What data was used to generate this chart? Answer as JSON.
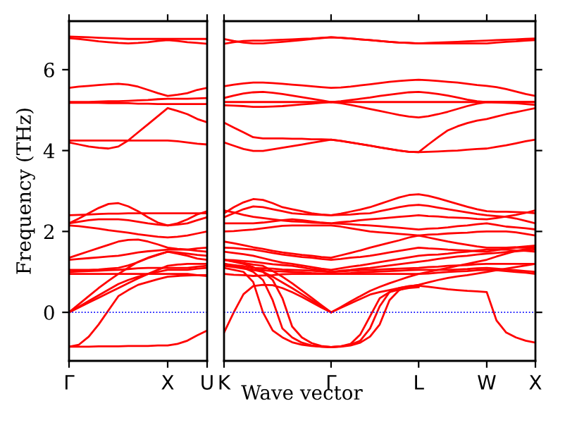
{
  "chart_data": [
    {
      "type": "line",
      "ylabel": "Frequency (THz)",
      "categories": [
        "Γ",
        null,
        null,
        null,
        null,
        null,
        null,
        null,
        null,
        null,
        "X",
        null,
        null,
        null,
        "U"
      ],
      "ylim": [
        -1.2,
        7.2
      ],
      "yticks": [
        0,
        2,
        4,
        6
      ],
      "ref_lines": [
        {
          "axis": "y",
          "value": 0,
          "color": "#0000ff",
          "line_style": "dotted"
        }
      ],
      "line_style": "solid",
      "marker": "none",
      "grid": false,
      "legend": false,
      "series": [
        {
          "color": "#ff0000",
          "values": [
            6.82,
            6.81,
            6.8,
            6.79,
            6.78,
            6.77,
            6.76,
            6.76,
            6.76,
            6.76,
            6.76,
            6.76,
            6.76,
            6.76,
            6.76
          ]
        },
        {
          "color": "#ff0000",
          "values": [
            6.78,
            6.76,
            6.73,
            6.7,
            6.68,
            6.66,
            6.65,
            6.66,
            6.68,
            6.71,
            6.73,
            6.71,
            6.68,
            6.66,
            6.64
          ]
        },
        {
          "color": "#ff0000",
          "values": [
            5.55,
            5.58,
            5.6,
            5.62,
            5.64,
            5.65,
            5.63,
            5.58,
            5.5,
            5.42,
            5.35,
            5.38,
            5.42,
            5.5,
            5.55
          ]
        },
        {
          "color": "#ff0000",
          "values": [
            5.2,
            5.2,
            5.2,
            5.21,
            5.22,
            5.22,
            5.23,
            5.24,
            5.25,
            5.27,
            5.28,
            5.28,
            5.28,
            5.29,
            5.3
          ]
        },
        {
          "color": "#ff0000",
          "values": [
            5.18,
            5.18,
            5.18,
            5.18,
            5.17,
            5.17,
            5.17,
            5.16,
            5.16,
            5.15,
            5.15,
            5.15,
            5.15,
            5.15,
            5.15
          ]
        },
        {
          "color": "#ff0000",
          "values": [
            4.25,
            4.25,
            4.25,
            4.25,
            4.25,
            4.25,
            4.25,
            4.25,
            4.25,
            4.25,
            4.25,
            4.23,
            4.2,
            4.17,
            4.15
          ]
        },
        {
          "color": "#ff0000",
          "values": [
            4.2,
            4.15,
            4.1,
            4.07,
            4.05,
            4.1,
            4.25,
            4.45,
            4.65,
            4.85,
            5.05,
            4.98,
            4.9,
            4.78,
            4.7
          ]
        },
        {
          "color": "#ff0000",
          "values": [
            2.4,
            2.41,
            2.42,
            2.43,
            2.44,
            2.44,
            2.45,
            2.45,
            2.45,
            2.45,
            2.45,
            2.45,
            2.45,
            2.45,
            2.45
          ]
        },
        {
          "color": "#ff0000",
          "values": [
            2.2,
            2.32,
            2.45,
            2.58,
            2.68,
            2.7,
            2.62,
            2.5,
            2.35,
            2.22,
            2.15,
            2.2,
            2.3,
            2.42,
            2.5
          ]
        },
        {
          "color": "#ff0000",
          "values": [
            2.2,
            2.24,
            2.28,
            2.3,
            2.3,
            2.3,
            2.28,
            2.24,
            2.2,
            2.17,
            2.15,
            2.17,
            2.2,
            2.28,
            2.35
          ]
        },
        {
          "color": "#ff0000",
          "values": [
            2.15,
            2.13,
            2.1,
            2.07,
            2.03,
            2.0,
            1.97,
            1.93,
            1.9,
            1.87,
            1.85,
            1.87,
            1.9,
            1.95,
            2.0
          ]
        },
        {
          "color": "#ff0000",
          "values": [
            1.35,
            1.43,
            1.51,
            1.59,
            1.67,
            1.75,
            1.79,
            1.8,
            1.75,
            1.68,
            1.6,
            1.57,
            1.55,
            1.52,
            1.5
          ]
        },
        {
          "color": "#ff0000",
          "values": [
            1.3,
            1.32,
            1.34,
            1.36,
            1.38,
            1.4,
            1.44,
            1.48,
            1.51,
            1.53,
            1.55,
            1.55,
            1.55,
            1.58,
            1.6
          ]
        },
        {
          "color": "#ff0000",
          "values": [
            1.05,
            1.05,
            1.05,
            1.06,
            1.08,
            1.1,
            1.16,
            1.24,
            1.34,
            1.42,
            1.5,
            1.45,
            1.4,
            1.33,
            1.3
          ]
        },
        {
          "color": "#ff0000",
          "values": [
            1.0,
            1.01,
            1.02,
            1.03,
            1.04,
            1.05,
            1.07,
            1.09,
            1.1,
            1.1,
            1.1,
            1.1,
            1.1,
            1.13,
            1.15
          ]
        },
        {
          "color": "#ff0000",
          "values": [
            0.95,
            0.95,
            0.95,
            0.95,
            0.95,
            0.95,
            0.95,
            0.95,
            0.95,
            0.95,
            0.95,
            0.95,
            0.95,
            0.92,
            0.9
          ]
        },
        {
          "color": "#ff0000",
          "values": [
            0,
            0.2,
            0.4,
            0.6,
            0.78,
            0.95,
            1.1,
            1.25,
            1.35,
            1.43,
            1.5,
            1.48,
            1.45,
            1.42,
            1.4
          ]
        },
        {
          "color": "#ff0000",
          "values": [
            0,
            0.12,
            0.24,
            0.36,
            0.48,
            0.6,
            0.72,
            0.84,
            0.95,
            1.05,
            1.15,
            1.18,
            1.2,
            1.2,
            1.2
          ]
        },
        {
          "color": "#ff0000",
          "values": [
            0,
            0.14,
            0.28,
            0.42,
            0.56,
            0.7,
            0.8,
            0.88,
            0.95,
            1.0,
            1.05,
            1.05,
            1.05,
            1.08,
            1.1
          ]
        },
        {
          "color": "#ff0000",
          "values": [
            -0.85,
            -0.8,
            -0.6,
            -0.3,
            0.05,
            0.4,
            0.55,
            0.68,
            0.75,
            0.82,
            0.88,
            0.9,
            0.91,
            0.92,
            0.92
          ]
        },
        {
          "color": "#ff0000",
          "values": [
            -0.85,
            -0.85,
            -0.85,
            -0.84,
            -0.84,
            -0.84,
            -0.83,
            -0.83,
            -0.83,
            -0.82,
            -0.82,
            -0.78,
            -0.7,
            -0.57,
            -0.45
          ]
        }
      ]
    },
    {
      "type": "line",
      "xlabel": "Wave vector",
      "categories": [
        "K",
        null,
        null,
        null,
        null,
        null,
        null,
        null,
        null,
        null,
        null,
        "Γ",
        null,
        null,
        null,
        null,
        null,
        null,
        null,
        null,
        "L",
        null,
        null,
        null,
        null,
        null,
        null,
        "W",
        null,
        null,
        null,
        null,
        "X"
      ],
      "ylim": [
        -1.2,
        7.2
      ],
      "yticks": [
        0,
        2,
        4,
        6
      ],
      "tick_labels": "x",
      "ref_lines": [
        {
          "axis": "y",
          "value": 0,
          "color": "#0000ff",
          "line_style": "dotted"
        }
      ],
      "line_style": "solid",
      "marker": "none",
      "grid": false,
      "legend": false,
      "series": [
        {
          "color": "#ff0000",
          "values": [
            6.76,
            6.71,
            6.67,
            6.65,
            6.65,
            6.67,
            6.69,
            6.71,
            6.73,
            6.76,
            6.78,
            6.8,
            6.79,
            6.77,
            6.75,
            6.73,
            6.71,
            6.69,
            6.67,
            6.66,
            6.65,
            6.66,
            6.67,
            6.68,
            6.69,
            6.7,
            6.71,
            6.72,
            6.73,
            6.74,
            6.75,
            6.76,
            6.77
          ]
        },
        {
          "color": "#ff0000",
          "values": [
            6.64,
            6.68,
            6.71,
            6.72,
            6.72,
            6.73,
            6.74,
            6.75,
            6.76,
            6.77,
            6.79,
            6.8,
            6.79,
            6.77,
            6.75,
            6.73,
            6.71,
            6.69,
            6.67,
            6.66,
            6.65,
            6.65,
            6.65,
            6.65,
            6.65,
            6.65,
            6.65,
            6.65,
            6.67,
            6.69,
            6.7,
            6.72,
            6.73
          ]
        },
        {
          "color": "#ff0000",
          "values": [
            5.59,
            5.63,
            5.66,
            5.68,
            5.68,
            5.67,
            5.65,
            5.63,
            5.61,
            5.59,
            5.57,
            5.55,
            5.56,
            5.58,
            5.61,
            5.64,
            5.67,
            5.7,
            5.72,
            5.74,
            5.75,
            5.74,
            5.72,
            5.7,
            5.68,
            5.65,
            5.62,
            5.6,
            5.57,
            5.52,
            5.46,
            5.4,
            5.35
          ]
        },
        {
          "color": "#ff0000",
          "values": [
            5.3,
            5.36,
            5.41,
            5.44,
            5.45,
            5.43,
            5.4,
            5.36,
            5.32,
            5.28,
            5.24,
            5.2,
            5.22,
            5.25,
            5.28,
            5.31,
            5.35,
            5.38,
            5.41,
            5.44,
            5.45,
            5.43,
            5.4,
            5.36,
            5.31,
            5.26,
            5.22,
            5.2,
            5.2,
            5.2,
            5.2,
            5.2,
            5.2
          ]
        },
        {
          "color": "#ff0000",
          "values": [
            5.2,
            5.2,
            5.2,
            5.2,
            5.2,
            5.2,
            5.2,
            5.2,
            5.2,
            5.2,
            5.2,
            5.2,
            5.2,
            5.2,
            5.2,
            5.2,
            5.2,
            5.2,
            5.2,
            5.2,
            5.2,
            5.2,
            5.2,
            5.2,
            5.2,
            5.2,
            5.2,
            5.2,
            5.2,
            5.2,
            5.2,
            5.2,
            5.2
          ]
        },
        {
          "color": "#ff0000",
          "values": [
            5.12,
            5.11,
            5.1,
            5.08,
            5.08,
            5.09,
            5.1,
            5.12,
            5.14,
            5.16,
            5.18,
            5.2,
            5.17,
            5.13,
            5.08,
            5.03,
            4.98,
            4.93,
            4.88,
            4.84,
            4.82,
            4.85,
            4.9,
            4.96,
            5.03,
            5.1,
            5.16,
            5.2,
            5.19,
            5.18,
            5.17,
            5.15,
            5.13
          ]
        },
        {
          "color": "#ff0000",
          "values": [
            4.69,
            4.57,
            4.45,
            4.33,
            4.3,
            4.3,
            4.3,
            4.29,
            4.29,
            4.28,
            4.28,
            4.27,
            4.24,
            4.2,
            4.16,
            4.12,
            4.08,
            4.04,
            4.0,
            3.97,
            3.96,
            4.15,
            4.33,
            4.5,
            4.6,
            4.68,
            4.74,
            4.78,
            4.84,
            4.9,
            4.95,
            5.0,
            5.05
          ]
        },
        {
          "color": "#ff0000",
          "values": [
            4.2,
            4.12,
            4.04,
            3.99,
            3.99,
            4.03,
            4.07,
            4.11,
            4.15,
            4.19,
            4.23,
            4.27,
            4.24,
            4.2,
            4.16,
            4.12,
            4.08,
            4.04,
            4.0,
            3.97,
            3.96,
            3.97,
            3.98,
            3.99,
            4.0,
            4.02,
            4.04,
            4.05,
            4.09,
            4.13,
            4.18,
            4.23,
            4.27
          ]
        },
        {
          "color": "#ff0000",
          "values": [
            2.45,
            2.6,
            2.72,
            2.8,
            2.78,
            2.7,
            2.6,
            2.55,
            2.5,
            2.45,
            2.42,
            2.4,
            2.44,
            2.49,
            2.54,
            2.6,
            2.68,
            2.76,
            2.84,
            2.9,
            2.92,
            2.88,
            2.82,
            2.75,
            2.68,
            2.61,
            2.55,
            2.5,
            2.49,
            2.49,
            2.48,
            2.47,
            2.45
          ]
        },
        {
          "color": "#ff0000",
          "values": [
            2.35,
            2.45,
            2.55,
            2.62,
            2.6,
            2.55,
            2.5,
            2.45,
            2.43,
            2.42,
            2.41,
            2.4,
            2.41,
            2.42,
            2.44,
            2.45,
            2.5,
            2.55,
            2.6,
            2.64,
            2.66,
            2.63,
            2.59,
            2.55,
            2.51,
            2.47,
            2.43,
            2.4,
            2.38,
            2.36,
            2.32,
            2.26,
            2.2
          ]
        },
        {
          "color": "#ff0000",
          "values": [
            2.52,
            2.47,
            2.41,
            2.36,
            2.33,
            2.3,
            2.27,
            2.25,
            2.24,
            2.22,
            2.21,
            2.2,
            2.23,
            2.25,
            2.28,
            2.3,
            2.32,
            2.34,
            2.36,
            2.38,
            2.4,
            2.38,
            2.37,
            2.35,
            2.34,
            2.33,
            2.31,
            2.3,
            2.33,
            2.37,
            2.41,
            2.46,
            2.52
          ]
        },
        {
          "color": "#ff0000",
          "values": [
            2.2,
            2.2,
            2.2,
            2.2,
            2.22,
            2.25,
            2.28,
            2.3,
            2.28,
            2.25,
            2.22,
            2.2,
            2.19,
            2.18,
            2.16,
            2.15,
            2.13,
            2.11,
            2.09,
            2.07,
            2.05,
            2.07,
            2.08,
            2.1,
            2.13,
            2.15,
            2.18,
            2.2,
            2.16,
            2.12,
            2.1,
            2.08,
            2.05
          ]
        },
        {
          "color": "#ff0000",
          "values": [
            2.0,
            2.01,
            2.03,
            2.05,
            2.08,
            2.11,
            2.14,
            2.15,
            2.15,
            2.15,
            2.15,
            2.15,
            2.12,
            2.08,
            2.04,
            2.0,
            1.98,
            1.96,
            1.94,
            1.92,
            1.9,
            1.92,
            1.93,
            1.95,
            1.96,
            1.97,
            1.99,
            2.0,
            2.0,
            2.0,
            1.98,
            1.94,
            1.9
          ]
        },
        {
          "color": "#ff0000",
          "values": [
            1.75,
            1.71,
            1.66,
            1.61,
            1.57,
            1.52,
            1.48,
            1.45,
            1.42,
            1.4,
            1.37,
            1.35,
            1.41,
            1.47,
            1.53,
            1.6,
            1.66,
            1.72,
            1.78,
            1.85,
            1.9,
            1.85,
            1.8,
            1.75,
            1.71,
            1.67,
            1.63,
            1.6,
            1.6,
            1.6,
            1.61,
            1.63,
            1.65
          ]
        },
        {
          "color": "#ff0000",
          "values": [
            1.6,
            1.59,
            1.57,
            1.55,
            1.51,
            1.47,
            1.43,
            1.4,
            1.37,
            1.35,
            1.32,
            1.3,
            1.32,
            1.35,
            1.37,
            1.4,
            1.44,
            1.48,
            1.52,
            1.56,
            1.6,
            1.58,
            1.57,
            1.55,
            1.54,
            1.53,
            1.51,
            1.5,
            1.54,
            1.58,
            1.6,
            1.6,
            1.6
          ]
        },
        {
          "color": "#ff0000",
          "values": [
            1.5,
            1.47,
            1.44,
            1.4,
            1.34,
            1.28,
            1.23,
            1.2,
            1.16,
            1.12,
            1.08,
            1.05,
            1.09,
            1.13,
            1.16,
            1.2,
            1.24,
            1.28,
            1.32,
            1.36,
            1.4,
            1.42,
            1.43,
            1.45,
            1.48,
            1.5,
            1.53,
            1.55,
            1.55,
            1.55,
            1.53,
            1.52,
            1.5
          ]
        },
        {
          "color": "#ff0000",
          "values": [
            1.3,
            1.29,
            1.27,
            1.25,
            1.22,
            1.19,
            1.17,
            1.15,
            1.11,
            1.07,
            1.04,
            1.0,
            1.03,
            1.05,
            1.08,
            1.1,
            1.13,
            1.16,
            1.19,
            1.22,
            1.25,
            1.28,
            1.32,
            1.35,
            1.38,
            1.4,
            1.43,
            1.45,
            1.47,
            1.49,
            1.51,
            1.53,
            1.55
          ]
        },
        {
          "color": "#ff0000",
          "values": [
            1.2,
            1.17,
            1.14,
            1.1,
            1.09,
            1.08,
            1.06,
            1.05,
            1.04,
            1.03,
            1.01,
            1.0,
            1.01,
            1.03,
            1.04,
            1.05,
            1.06,
            1.07,
            1.08,
            1.09,
            1.1,
            1.12,
            1.13,
            1.15,
            1.16,
            1.17,
            1.19,
            1.2,
            1.2,
            1.2,
            1.2,
            1.2,
            1.2
          ]
        },
        {
          "color": "#ff0000",
          "values": [
            1.15,
            1.12,
            1.08,
            1.05,
            1.04,
            1.02,
            1.01,
            1.0,
            0.99,
            0.97,
            0.96,
            0.95,
            0.96,
            0.97,
            0.99,
            1.0,
            1.01,
            1.02,
            1.03,
            1.04,
            1.05,
            1.05,
            1.05,
            1.05,
            1.06,
            1.07,
            1.09,
            1.1,
            1.08,
            1.06,
            1.04,
            1.02,
            1.0
          ]
        },
        {
          "color": "#ff0000",
          "values": [
            0.95,
            0.93,
            0.92,
            0.9,
            0.91,
            0.92,
            0.94,
            0.95,
            0.95,
            0.95,
            0.95,
            0.95,
            0.95,
            0.95,
            0.95,
            0.95,
            0.95,
            0.95,
            0.95,
            0.95,
            0.95,
            0.96,
            0.98,
            1.0,
            1.01,
            1.02,
            1.04,
            1.05,
            1.04,
            1.02,
            1.0,
            0.98,
            0.95
          ]
        },
        {
          "color": "#ff0000",
          "values": [
            -0.5,
            0.0,
            0.45,
            0.65,
            0.68,
            0.67,
            0.6,
            0.5,
            0.38,
            0.25,
            0.12,
            0,
            null,
            null,
            null,
            null,
            null,
            null,
            null,
            null,
            null,
            null,
            null,
            null,
            null,
            null,
            null,
            null,
            null,
            null,
            null,
            null,
            null
          ]
        },
        {
          "color": "#ff0000",
          "values": [
            1.2,
            1.15,
            1.1,
            1.05,
            1.0,
            0.88,
            0.74,
            0.6,
            0.45,
            0.3,
            0.15,
            0,
            null,
            null,
            null,
            null,
            null,
            null,
            null,
            null,
            null,
            null,
            null,
            null,
            null,
            null,
            null,
            null,
            null,
            null,
            null,
            null,
            null
          ]
        },
        {
          "color": "#ff0000",
          "values": [
            1.3,
            1.26,
            1.22,
            1.18,
            1.15,
            1.02,
            0.88,
            0.72,
            0.54,
            0.36,
            0.18,
            0,
            null,
            null,
            null,
            null,
            null,
            null,
            null,
            null,
            null,
            null,
            null,
            null,
            null,
            null,
            null,
            null,
            null,
            null,
            null,
            null,
            null
          ]
        },
        {
          "color": "#ff0000",
          "values": [
            null,
            null,
            null,
            null,
            null,
            null,
            null,
            null,
            null,
            null,
            null,
            0,
            0.13,
            0.27,
            0.4,
            0.53,
            0.63,
            0.72,
            0.8,
            0.88,
            0.95,
            1.0,
            1.05,
            1.1,
            1.15,
            1.2,
            1.25,
            1.3,
            1.38,
            1.45,
            1.52,
            1.56,
            1.6
          ]
        },
        {
          "color": "#ff0000",
          "values": [
            null,
            null,
            null,
            null,
            null,
            null,
            null,
            null,
            null,
            null,
            null,
            0,
            0.11,
            0.22,
            0.33,
            0.44,
            0.5,
            0.55,
            0.6,
            0.64,
            0.68,
            0.74,
            0.8,
            0.85,
            0.89,
            0.92,
            0.96,
            1.0,
            1.04,
            1.08,
            1.12,
            1.16,
            1.2
          ]
        },
        {
          "color": "#ff0000",
          "values": [
            1.1,
            1.05,
            1.0,
            0.75,
            0.0,
            -0.45,
            -0.62,
            -0.74,
            -0.8,
            -0.83,
            -0.85,
            -0.86,
            -0.84,
            -0.8,
            -0.7,
            -0.4,
            0.15,
            0.5,
            0.6,
            0.65,
            0.67,
            null,
            null,
            null,
            null,
            null,
            null,
            null,
            null,
            null,
            null,
            null,
            null
          ]
        },
        {
          "color": "#ff0000",
          "values": [
            1.2,
            1.15,
            1.1,
            1.0,
            0.8,
            0.3,
            -0.4,
            -0.62,
            -0.75,
            -0.82,
            -0.85,
            -0.86,
            -0.85,
            -0.82,
            -0.75,
            -0.6,
            -0.3,
            0.3,
            0.55,
            0.63,
            0.66,
            0.63,
            0.6,
            0.57,
            0.55,
            0.53,
            0.52,
            0.5,
            -0.2,
            -0.5,
            -0.62,
            -0.7,
            -0.75
          ]
        },
        {
          "color": "#ff0000",
          "values": [
            1.3,
            1.25,
            1.2,
            1.12,
            1.0,
            0.8,
            0.35,
            -0.35,
            -0.62,
            -0.76,
            -0.83,
            -0.86,
            -0.84,
            -0.78,
            -0.55,
            -0.1,
            0.35,
            0.5,
            0.56,
            0.6,
            0.62,
            null,
            null,
            null,
            null,
            null,
            null,
            null,
            null,
            null,
            null,
            null,
            null
          ]
        }
      ]
    }
  ]
}
